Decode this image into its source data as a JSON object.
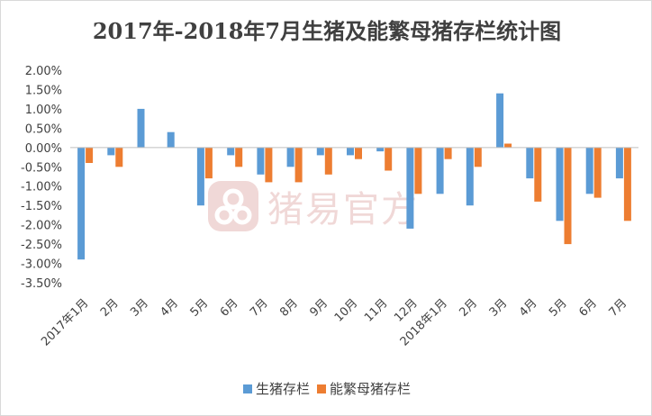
{
  "chart_data": {
    "type": "bar",
    "title": "2017年-2018年7月生猪及能繁母猪存栏统计图",
    "categories": [
      "2017年1月",
      "2月",
      "3月",
      "4月",
      "5月",
      "6月",
      "7月",
      "8月",
      "9月",
      "10月",
      "11月",
      "12月",
      "2018年1月",
      "2月",
      "3月",
      "4月",
      "5月",
      "6月",
      "7月"
    ],
    "series": [
      {
        "name": "生猪存栏",
        "color": "#5b9bd5",
        "values": [
          -2.9,
          -0.2,
          1.0,
          0.4,
          -1.5,
          -0.2,
          -0.7,
          -0.5,
          -0.2,
          -0.2,
          -0.1,
          -2.1,
          -1.2,
          -1.5,
          1.4,
          -0.8,
          -1.9,
          -1.2,
          -0.8
        ]
      },
      {
        "name": "能繁母猪存栏",
        "color": "#ed7d31",
        "values": [
          -0.4,
          -0.5,
          0.0,
          0.0,
          -0.8,
          -0.5,
          -0.9,
          -0.9,
          -0.7,
          -0.3,
          -0.6,
          -1.2,
          -0.3,
          -0.5,
          0.1,
          -1.4,
          -2.5,
          -1.3,
          -1.9
        ]
      }
    ],
    "ylim": [
      -3.5,
      2.0
    ],
    "yticks": [
      "2.00%",
      "1.50%",
      "1.00%",
      "0.50%",
      "0.00%",
      "-0.50%",
      "-1.00%",
      "-1.50%",
      "-2.00%",
      "-2.50%",
      "-3.00%",
      "-3.50%"
    ],
    "grid": false,
    "legend": "bottom"
  },
  "watermark": {
    "text": "猪易官方",
    "icon": "pig-nose-logo-icon",
    "color": "#c0504d"
  }
}
